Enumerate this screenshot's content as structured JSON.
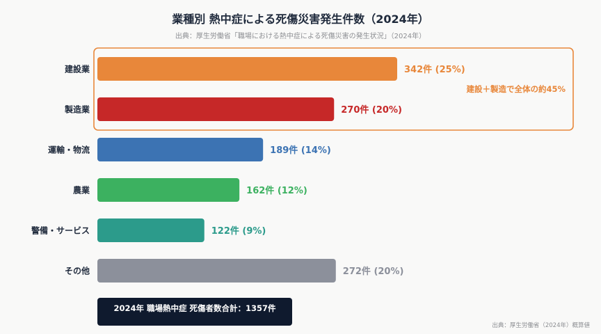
{
  "title": "業種別 熱中症による死傷災害発生件数（2024年）",
  "subtitle": "出典：厚生労働省「職場における熱中症による死傷災害の発生状況」（2024年）",
  "chart_data": {
    "type": "bar",
    "orientation": "horizontal",
    "categories": [
      "建設業",
      "製造業",
      "運輸・物流",
      "農業",
      "警備・サービス",
      "その他"
    ],
    "values": [
      342,
      270,
      189,
      162,
      122,
      272
    ],
    "value_labels": [
      "342件 (25%)",
      "270件 (20%)",
      "189件 (14%)",
      "162件 (12%)",
      "122件 (9%)",
      "272件 (20%)"
    ],
    "colors": [
      "#e8873a",
      "#c62828",
      "#3c73b3",
      "#3cb160",
      "#2c9b8b",
      "#8c909b"
    ],
    "xlim": [
      0,
      400
    ],
    "grid": false,
    "annotation": {
      "text": "建設＋製造で全体の約45%",
      "color": "#e8873a",
      "categories": [
        "建設業",
        "製造業"
      ]
    }
  },
  "total_text": "2024年 職場熱中症 死傷者数合計：1357件",
  "footer_note": "出典：厚生労働省（2024年）概算値"
}
